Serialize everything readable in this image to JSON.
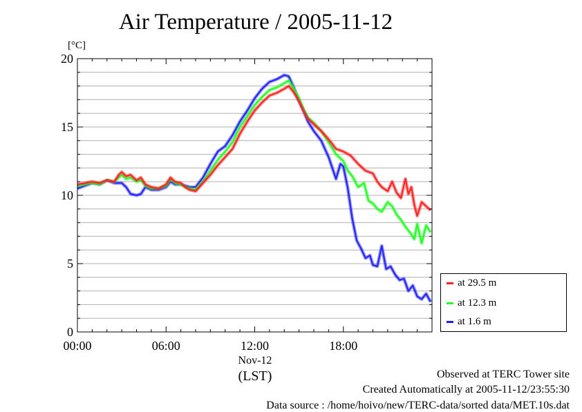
{
  "chart_data": {
    "type": "line",
    "title": "Air Temperature / 2005-11-12",
    "ylabel": "[°C]",
    "xlabel": "(LST)",
    "date_label": "Nov-12",
    "ylim": [
      0,
      20
    ],
    "xlim": [
      0,
      24
    ],
    "y_ticks": [
      "0",
      "5",
      "10",
      "15",
      "20"
    ],
    "x_ticks": [
      {
        "value": 0,
        "label": "00:00"
      },
      {
        "value": 6,
        "label": "06:00"
      },
      {
        "value": 12,
        "label": "12:00"
      },
      {
        "value": 18,
        "label": "18:00"
      }
    ],
    "grid": true,
    "legend_position": "right-bottom",
    "series": [
      {
        "name": "at 29.5 m",
        "color": "#ff2020",
        "x": [
          0,
          0.5,
          1,
          1.5,
          2,
          2.5,
          2.8,
          3,
          3.3,
          3.6,
          4,
          4.3,
          4.6,
          5,
          5.5,
          6,
          6.3,
          6.6,
          7,
          7.3,
          7.6,
          8,
          8.5,
          9,
          9.5,
          10,
          10.5,
          11,
          11.5,
          12,
          12.5,
          13,
          13.5,
          14,
          14.3,
          14.6,
          15,
          15.3,
          15.6,
          16,
          16.5,
          17,
          17.5,
          18,
          18.5,
          19,
          19.5,
          20,
          20.3,
          20.6,
          21,
          21.3,
          21.6,
          21.9,
          22.2,
          22.4,
          22.6,
          22.8,
          23,
          23.3,
          23.6,
          23.9
        ],
        "y": [
          10.8,
          10.9,
          11,
          10.9,
          11.1,
          11,
          11.5,
          11.7,
          11.4,
          11.5,
          11.1,
          11.3,
          10.8,
          10.6,
          10.5,
          10.8,
          11.3,
          11,
          10.9,
          10.6,
          10.4,
          10.3,
          10.9,
          11.5,
          12.2,
          12.8,
          13.4,
          14.5,
          15.4,
          16.2,
          16.8,
          17.3,
          17.5,
          17.8,
          18,
          17.6,
          16.9,
          16.2,
          15.6,
          15.2,
          14.7,
          14.1,
          13.4,
          13.2,
          12.9,
          12.3,
          11.8,
          11.6,
          11,
          10.6,
          10.3,
          11,
          10.2,
          9.8,
          11.2,
          10.1,
          10.6,
          9.3,
          8.5,
          9.5,
          9.2,
          8.9
        ]
      },
      {
        "name": "at 12.3 m",
        "color": "#20ff20",
        "x": [
          0,
          0.5,
          1,
          1.5,
          2,
          2.5,
          2.8,
          3,
          3.3,
          3.6,
          4,
          4.3,
          4.6,
          5,
          5.5,
          6,
          6.3,
          6.6,
          7,
          7.3,
          7.6,
          8,
          8.5,
          9,
          9.5,
          10,
          10.5,
          11,
          11.5,
          12,
          12.5,
          13,
          13.5,
          14,
          14.3,
          14.6,
          15,
          15.3,
          15.6,
          16,
          16.5,
          17,
          17.5,
          18,
          18.3,
          18.6,
          19,
          19.4,
          19.7,
          20,
          20.3,
          20.6,
          21,
          21.3,
          21.6,
          21.9,
          22.2,
          22.5,
          22.8,
          23,
          23.3,
          23.6,
          23.9
        ],
        "y": [
          10.7,
          10.8,
          10.9,
          10.8,
          11.1,
          11,
          11.3,
          11.5,
          11.2,
          11.3,
          11,
          11.1,
          10.7,
          10.5,
          10.5,
          10.7,
          11.2,
          10.9,
          10.8,
          10.6,
          10.5,
          10.4,
          11,
          11.8,
          12.6,
          13.2,
          13.9,
          15,
          15.8,
          16.6,
          17.2,
          17.7,
          17.9,
          18.2,
          18.4,
          17.9,
          17.1,
          16.3,
          15.7,
          15.3,
          14.7,
          13.9,
          13,
          12.5,
          11.8,
          11.4,
          10.6,
          10.9,
          9.6,
          9.4,
          9,
          8.8,
          9.5,
          9.2,
          8.6,
          8.2,
          7.7,
          7.3,
          6.8,
          7.9,
          6.5,
          7.8,
          7.3
        ]
      },
      {
        "name": "at 1.6 m",
        "color": "#2020ff",
        "x": [
          0,
          0.5,
          1,
          1.5,
          2,
          2.5,
          3,
          3.3,
          3.6,
          4,
          4.3,
          4.6,
          5,
          5.5,
          6,
          6.3,
          6.6,
          7,
          7.3,
          7.6,
          8,
          8.5,
          9,
          9.5,
          10,
          10.5,
          11,
          11.5,
          12,
          12.5,
          13,
          13.5,
          14,
          14.3,
          14.6,
          15,
          15.3,
          15.6,
          16,
          16.5,
          17,
          17.5,
          17.8,
          18,
          18.3,
          18.6,
          18.9,
          19.2,
          19.5,
          19.8,
          20,
          20.3,
          20.6,
          20.9,
          21.2,
          21.5,
          21.8,
          22.1,
          22.4,
          22.7,
          23,
          23.3,
          23.6,
          23.9
        ],
        "y": [
          10.5,
          10.7,
          10.9,
          10.8,
          11.1,
          10.9,
          10.9,
          10.6,
          10.1,
          10,
          10.1,
          10.6,
          10.4,
          10.4,
          10.6,
          11,
          10.8,
          10.8,
          10.7,
          10.6,
          10.6,
          11.3,
          12.3,
          13.2,
          13.6,
          14.4,
          15.4,
          16.2,
          17.1,
          17.8,
          18.3,
          18.5,
          18.8,
          18.7,
          18,
          16.9,
          16.2,
          15.4,
          14.7,
          14,
          12.8,
          11.2,
          12.3,
          12.1,
          10.5,
          8.3,
          6.7,
          6.1,
          5.4,
          5.6,
          4.9,
          4.8,
          6.3,
          4.6,
          4.8,
          4.2,
          3.8,
          3.9,
          3,
          3.4,
          2.6,
          2.4,
          2.8,
          2.2
        ]
      }
    ]
  },
  "footer": {
    "site": "Observed at TERC Tower site",
    "created": "Created Automatically at 2005-11-12/23:55:30",
    "source": "Data source : /home/hoivo/new/TERC-data/sorted  data/MET.10s.dat"
  }
}
